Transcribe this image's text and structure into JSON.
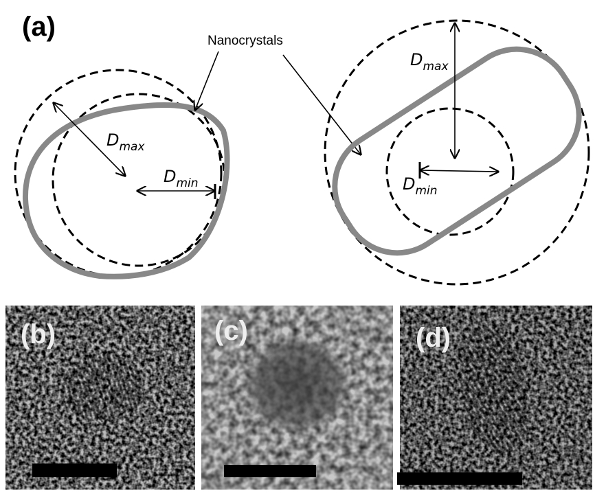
{
  "panel_a": {
    "label": "(a)",
    "callout": "Nanocrystals",
    "left": {
      "dmax": {
        "symbol": "D",
        "subscript": "max"
      },
      "dmin": {
        "symbol": "D",
        "subscript": "min"
      }
    },
    "right": {
      "dmax": {
        "symbol": "D",
        "subscript": "max"
      },
      "dmin": {
        "symbol": "D",
        "subscript": "min"
      }
    }
  },
  "panels": [
    {
      "label": "(b)"
    },
    {
      "label": "(c)"
    },
    {
      "label": "(d)"
    }
  ]
}
